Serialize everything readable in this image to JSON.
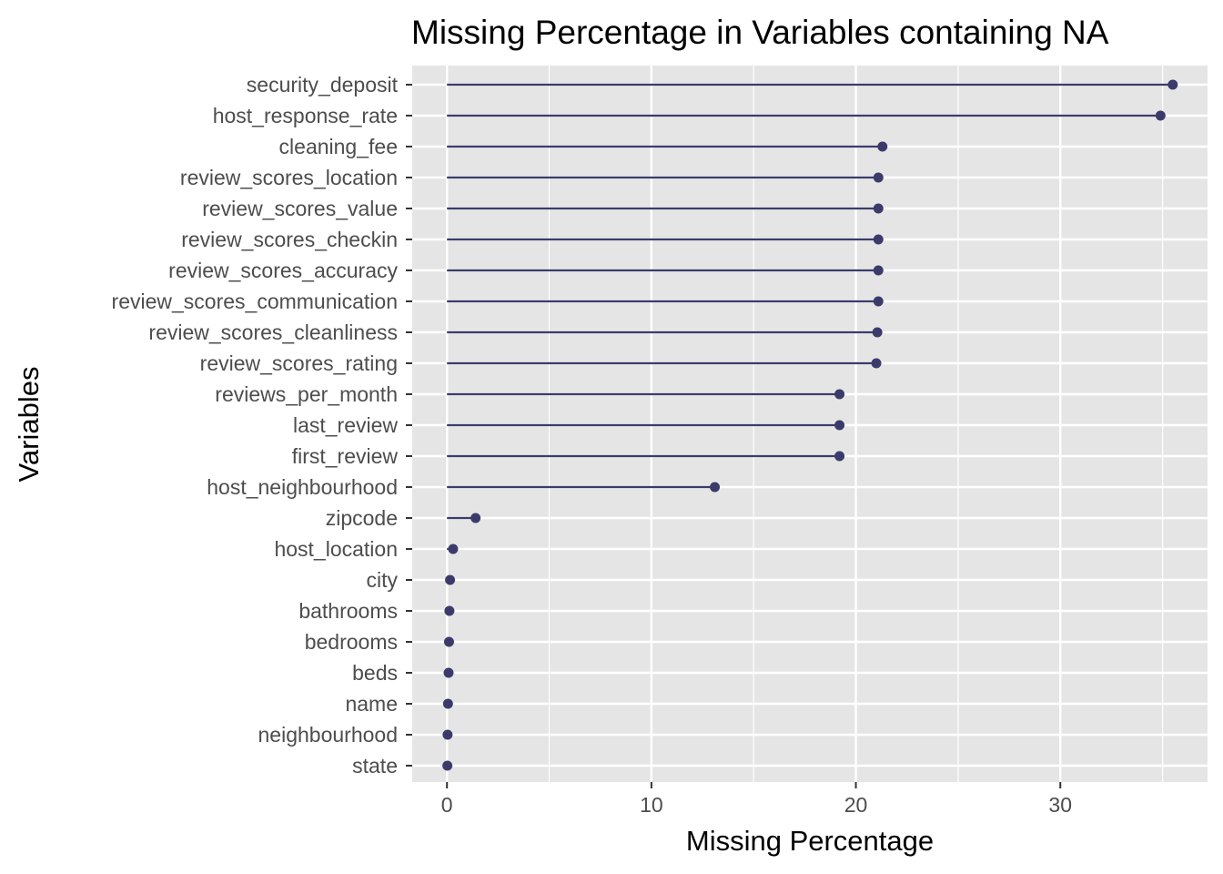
{
  "chart_data": {
    "type": "lollipop",
    "orientation": "horizontal",
    "title": "Missing Percentage in Variables containing NA",
    "xlabel": "Missing Percentage",
    "ylabel": "Variables",
    "xlim": [
      -1.7,
      37.2
    ],
    "xticks": [
      0,
      10,
      20,
      30
    ],
    "grid": true,
    "legend": "none",
    "colors": {
      "panel_bg": "#e5e5e5",
      "grid": "#ffffff",
      "mark": "#3b3b6b",
      "tick_text": "#4d4d4d",
      "title_text": "#000000"
    },
    "categories": [
      "security_deposit",
      "host_response_rate",
      "cleaning_fee",
      "review_scores_location",
      "review_scores_value",
      "review_scores_checkin",
      "review_scores_accuracy",
      "review_scores_communication",
      "review_scores_cleanliness",
      "review_scores_rating",
      "reviews_per_month",
      "last_review",
      "first_review",
      "host_neighbourhood",
      "zipcode",
      "host_location",
      "city",
      "bathrooms",
      "bedrooms",
      "beds",
      "name",
      "neighbourhood",
      "state"
    ],
    "values": [
      35.5,
      34.9,
      21.3,
      21.1,
      21.1,
      21.1,
      21.1,
      21.1,
      21.05,
      21.0,
      19.2,
      19.2,
      19.2,
      13.1,
      1.4,
      0.3,
      0.15,
      0.12,
      0.1,
      0.08,
      0.05,
      0.03,
      0.02
    ]
  }
}
